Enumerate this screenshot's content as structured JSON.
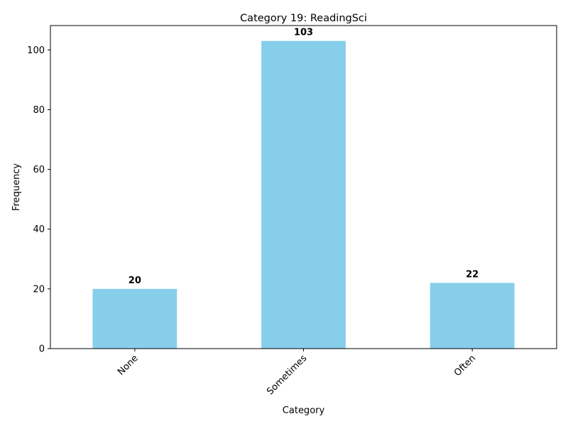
{
  "chart_data": {
    "type": "bar",
    "title": "Category 19: ReadingSci",
    "xlabel": "Category",
    "ylabel": "Frequency",
    "categories": [
      "None",
      "Sometimes",
      "Often"
    ],
    "values": [
      20,
      103,
      22
    ],
    "data_labels": [
      "20",
      "103",
      "22"
    ],
    "ylim": [
      0,
      108.15
    ],
    "yticks": [
      0,
      20,
      40,
      60,
      80,
      100
    ],
    "ytick_labels": [
      "0",
      "20",
      "40",
      "60",
      "80",
      "100"
    ],
    "bar_color": "#87CEEB",
    "grid": false,
    "legend": "none"
  }
}
